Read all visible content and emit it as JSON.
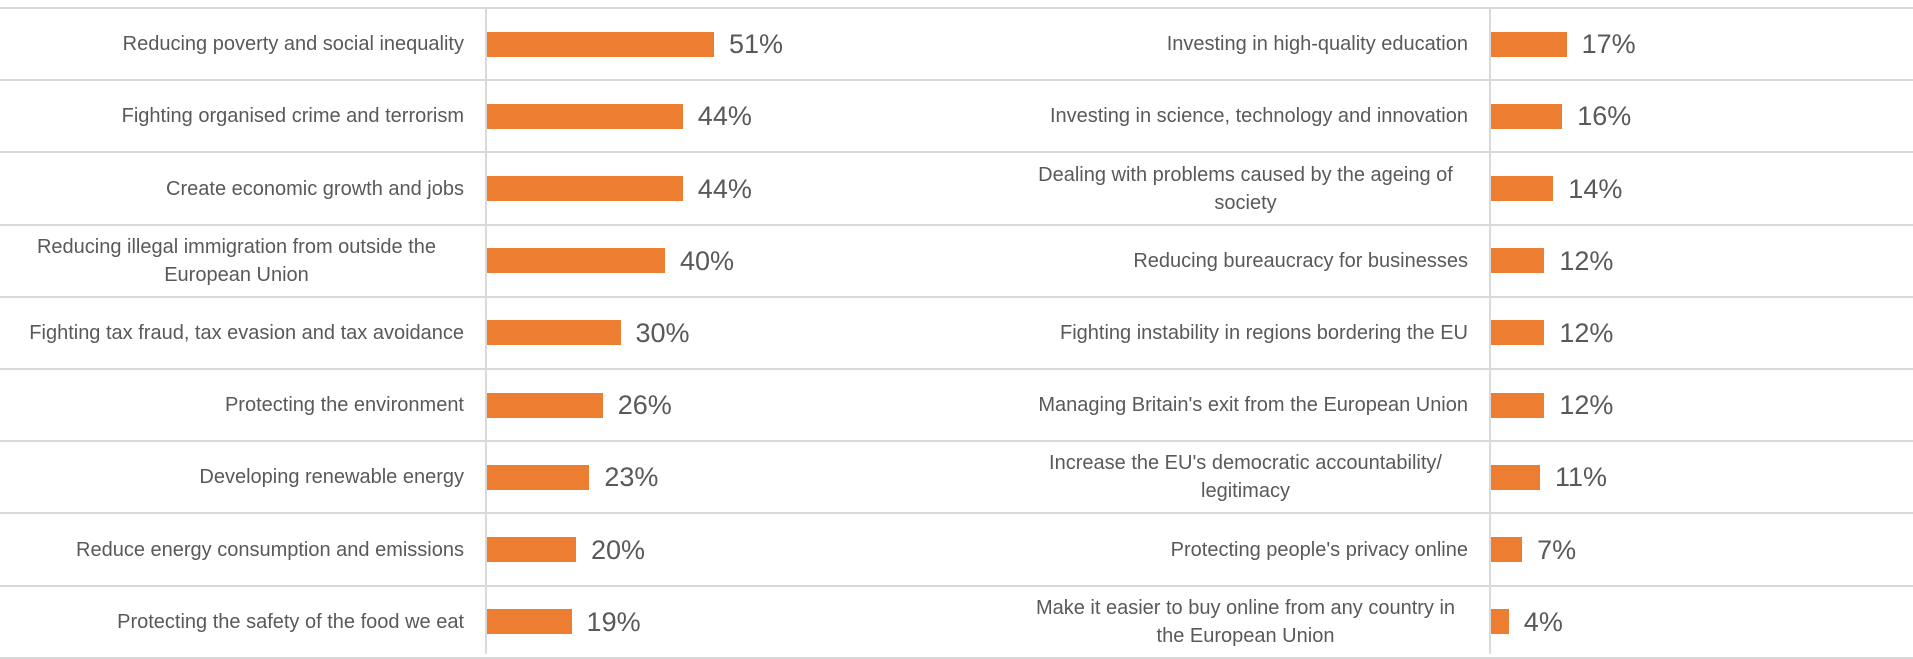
{
  "chart_data": [
    {
      "type": "bar",
      "orientation": "horizontal",
      "color": "#ed7d31",
      "categories": [
        "Reducing poverty and social inequality",
        "Fighting organised crime and terrorism",
        "Create economic growth and jobs",
        "Reducing illegal immigration from outside the European Union",
        "Fighting tax fraud, tax evasion and tax avoidance",
        "Protecting the environment",
        "Developing renewable energy",
        "Reduce energy consumption and emissions",
        "Protecting the safety of the food we eat"
      ],
      "values": [
        51,
        44,
        44,
        40,
        30,
        26,
        23,
        20,
        19
      ],
      "value_labels": [
        "51%",
        "44%",
        "44%",
        "40%",
        "30%",
        "26%",
        "23%",
        "20%",
        "19%"
      ]
    },
    {
      "type": "bar",
      "orientation": "horizontal",
      "color": "#ed7d31",
      "categories": [
        "Investing in high-quality education",
        "Investing in science, technology and innovation",
        "Dealing with problems caused by the ageing of society",
        "Reducing bureaucracy for businesses",
        "Fighting instability in regions bordering the EU",
        "Managing Britain's exit from the European Union",
        "Increase the EU's democratic accountability/ legitimacy",
        "Protecting people's privacy online",
        "Make it easier to buy online from any country in the European Union"
      ],
      "values": [
        17,
        16,
        14,
        12,
        12,
        12,
        11,
        7,
        4
      ],
      "value_labels": [
        "17%",
        "16%",
        "14%",
        "12%",
        "12%",
        "12%",
        "11%",
        "7%",
        "4%"
      ]
    }
  ]
}
